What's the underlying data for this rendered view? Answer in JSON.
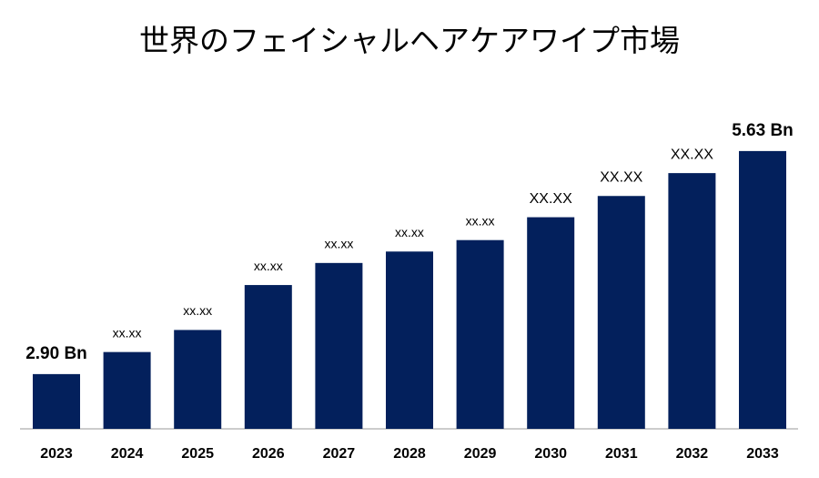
{
  "chart_data": {
    "type": "bar",
    "title": "世界のフェイシャルヘアケアワイプ市場",
    "categories": [
      "2023",
      "2024",
      "2025",
      "2026",
      "2027",
      "2028",
      "2029",
      "2030",
      "2031",
      "2032",
      "2033"
    ],
    "values": [
      2.9,
      3.17,
      3.44,
      3.99,
      4.26,
      4.4,
      4.54,
      4.82,
      5.08,
      5.36,
      5.63
    ],
    "value_labels": [
      "2.90 Bn",
      "xx.xx",
      "xx.xx",
      "xx.xx",
      "xx.xx",
      "xx.xx",
      "xx.xx",
      "XX.XX",
      "XX.XX",
      "XX.XX",
      "5.63 Bn"
    ],
    "color": "#03205c",
    "ylim": [
      2.23,
      6.03
    ]
  }
}
